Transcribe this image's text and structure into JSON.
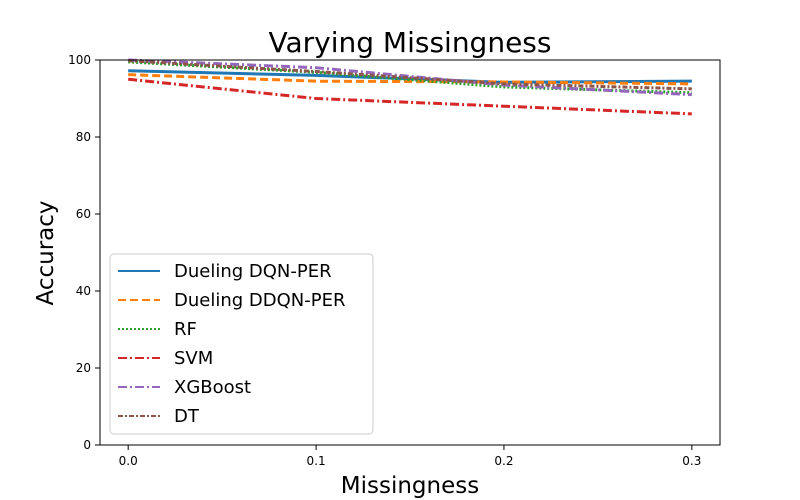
{
  "chart_data": {
    "type": "line",
    "title": "Varying Missingness",
    "xlabel": "Missingness",
    "ylabel": "Accuracy",
    "x": [
      0.0,
      0.1,
      0.2,
      0.3
    ],
    "xticks": [
      "0.0",
      "0.1",
      "0.2",
      "0.3"
    ],
    "yticks": [
      "0",
      "20",
      "40",
      "60",
      "80",
      "100"
    ],
    "xlim": [
      -0.015,
      0.315
    ],
    "ylim": [
      0,
      100
    ],
    "grid": false,
    "legend_position": "lower-left",
    "series": [
      {
        "name": "Dueling DQN-PER",
        "values": [
          97.2,
          96.0,
          94.2,
          94.5
        ],
        "color": "#1f77b4",
        "dash": "solid"
      },
      {
        "name": "Dueling DDQN-PER",
        "values": [
          96.2,
          94.5,
          94.3,
          93.8
        ],
        "color": "#ff7f0e",
        "dash": "dashed"
      },
      {
        "name": "RF",
        "values": [
          99.5,
          96.8,
          93.0,
          91.5
        ],
        "color": "#2ca02c",
        "dash": "dotted"
      },
      {
        "name": "SVM",
        "values": [
          95.0,
          90.0,
          88.0,
          86.0
        ],
        "color": "#d62728",
        "dash": "dashdot"
      },
      {
        "name": "XGBoost",
        "values": [
          100.0,
          98.0,
          93.5,
          91.0
        ],
        "color": "#9467bd",
        "dash": "dashdot"
      },
      {
        "name": "DT",
        "values": [
          99.8,
          97.0,
          93.8,
          92.5
        ],
        "color": "#8c564b",
        "dash": "densedashdot"
      }
    ]
  }
}
